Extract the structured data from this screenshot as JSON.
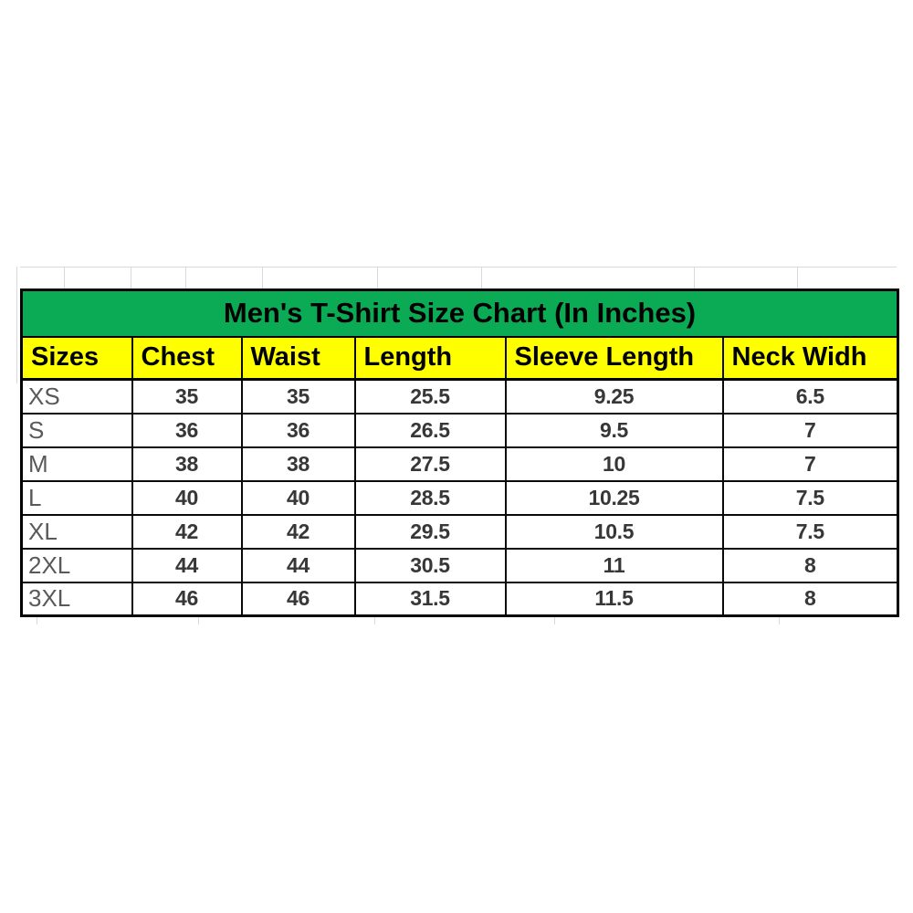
{
  "chart_data": {
    "type": "table",
    "title": "Men's T-Shirt Size Chart (In Inches)",
    "columns": [
      "Sizes",
      "Chest",
      "Waist",
      "Length",
      "Sleeve Length",
      "Neck Widh"
    ],
    "rows": [
      [
        "XS",
        "35",
        "35",
        "25.5",
        "9.25",
        "6.5"
      ],
      [
        "S",
        "36",
        "36",
        "26.5",
        "9.5",
        "7"
      ],
      [
        "M",
        "38",
        "38",
        "27.5",
        "10",
        "7"
      ],
      [
        "L",
        "40",
        "40",
        "28.5",
        "10.25",
        "7.5"
      ],
      [
        "XL",
        "42",
        "42",
        "29.5",
        "10.5",
        "7.5"
      ],
      [
        "2XL",
        "44",
        "44",
        "30.5",
        "11",
        "8"
      ],
      [
        "3XL",
        "46",
        "46",
        "31.5",
        "11.5",
        "8"
      ]
    ],
    "colors": {
      "title_bg": "#0bab55",
      "header_bg": "#ffff00",
      "border": "#000000",
      "row_bg": "#ffffff",
      "size_label_text": "#595959",
      "value_text": "#373737",
      "header_text": "#000000"
    },
    "layout_hints": {
      "grid": "full black gridlines, thick outer border",
      "legend": "none",
      "title_position": "top merged band"
    }
  }
}
